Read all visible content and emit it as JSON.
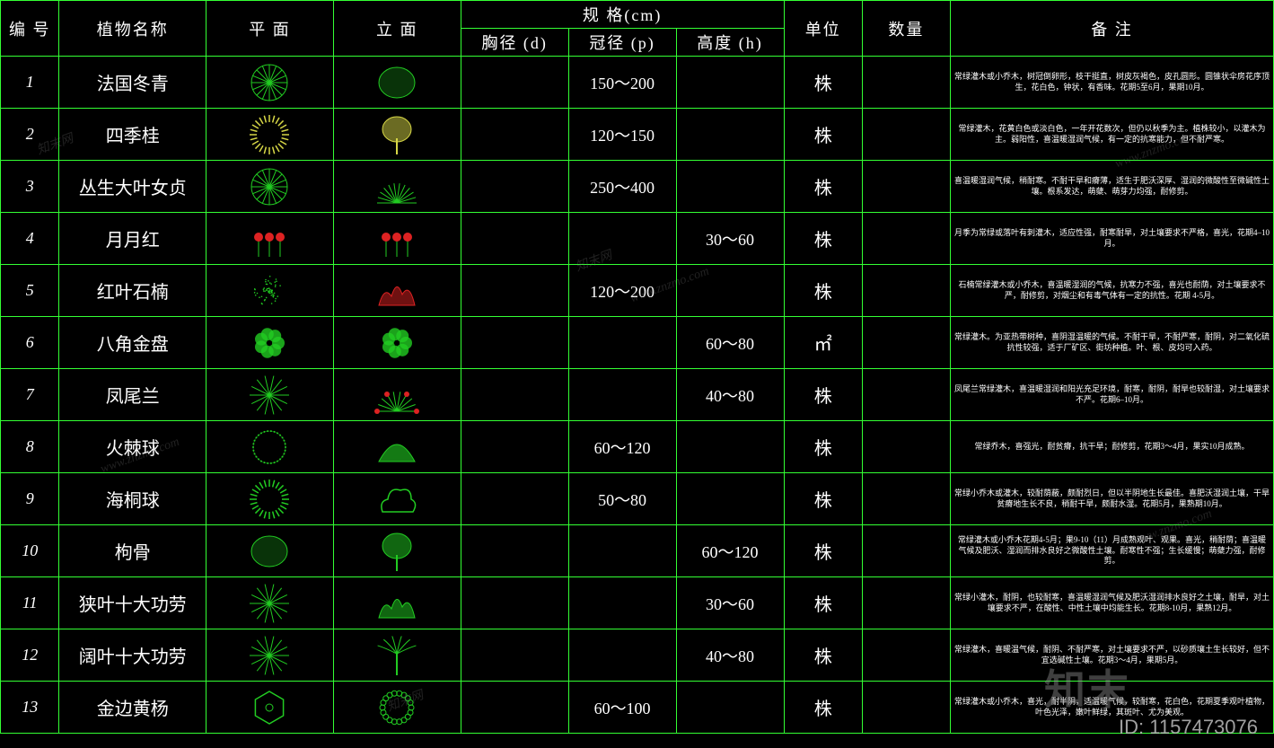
{
  "colors": {
    "background": "#000000",
    "border": "#33ff33",
    "text": "#ffffff",
    "plant_green": "#22cc22",
    "plant_red": "#dd2222",
    "plant_yellow": "#d6d646"
  },
  "watermarks": {
    "url": "www.znzmo.com",
    "brand": "知末网",
    "big_brand": "知末",
    "id_label": "ID: 1157473076"
  },
  "headers": {
    "id": "编 号",
    "name": "植物名称",
    "plan": "平 面",
    "elev": "立 面",
    "spec_group": "规  格(cm)",
    "spec_d": "胸径 (d)",
    "spec_p": "冠径 (p)",
    "spec_h": "高度 (h)",
    "unit": "单位",
    "qty": "数量",
    "note": "备  注"
  },
  "rows": [
    {
      "id": "1",
      "name": "法国冬青",
      "d": "",
      "p": "150～200",
      "h": "",
      "unit": "株",
      "qty": "",
      "note": "常绿灌木或小乔木，树冠倒卵形，枝干挺直，树皮灰褐色，皮孔圆形。圆锥状伞房花序顶生，花白色，钟状，有香味。花期5至6月，果期10月。",
      "plan": "radial-green",
      "elev": "blob-green"
    },
    {
      "id": "2",
      "name": "四季桂",
      "d": "",
      "p": "120～150",
      "h": "",
      "unit": "株",
      "qty": "",
      "note": "常绿灌木，花黄白色或淡白色，一年开花数次，但仍以秋季为主。植株较小，以灌木为主。弱阳性，喜温暖湿润气候，有一定的抗寒能力，但不耐严寒。",
      "plan": "ring-yellow",
      "elev": "tree-yellow"
    },
    {
      "id": "3",
      "name": "丛生大叶女贞",
      "d": "",
      "p": "250～400",
      "h": "",
      "unit": "株",
      "qty": "",
      "note": "喜温暖湿润气候，稍耐寒。不耐干旱和瘠薄，适生于肥沃深厚、湿润的微酸性至微碱性土壤。根系发达，萌蘖、萌芽力均强，耐修剪。",
      "plan": "radial-green",
      "elev": "fan-green"
    },
    {
      "id": "4",
      "name": "月月红",
      "d": "",
      "p": "",
      "h": "30～60",
      "unit": "株",
      "qty": "",
      "note": "月季为常绿或落叶有刺灌木，适应性强，耐寒耐旱，对土壤要求不严格，喜光，花期4–10月。",
      "plan": "flower-red",
      "elev": "flower-red"
    },
    {
      "id": "5",
      "name": "红叶石楠",
      "d": "",
      "p": "120～200",
      "h": "",
      "unit": "株",
      "qty": "",
      "note": "石楠常绿灌木或小乔木，喜温暖湿润的气候，抗寒力不强，喜光也耐荫，对土壤要求不严，耐修剪，对烟尘和有毒气体有一定的抗性。花期 4-5月。",
      "plan": "dots-green",
      "elev": "bush-red"
    },
    {
      "id": "6",
      "name": "八角金盘",
      "d": "",
      "p": "",
      "h": "60～80",
      "unit": "㎡",
      "qty": "",
      "note": "常绿灌木。为亚热带树种，喜阴湿温暖的气候。不耐干旱，不耐严寒，耐阴，对二氧化硫抗性较强，适于厂矿区、街坊种植。叶、根、皮均可入药。",
      "plan": "cluster-green",
      "elev": "cluster-green"
    },
    {
      "id": "7",
      "name": "凤尾兰",
      "d": "",
      "p": "",
      "h": "40～80",
      "unit": "株",
      "qty": "",
      "note": "凤尾兰常绿灌木，喜温暖湿润和阳光充足环境，耐寒，耐阴，耐旱也较耐湿，对土壤要求不严。花期6–10月。",
      "plan": "spiky-green",
      "elev": "spiky-red"
    },
    {
      "id": "8",
      "name": "火棘球",
      "d": "",
      "p": "60～120",
      "h": "",
      "unit": "株",
      "qty": "",
      "note": "常绿乔木，喜强光，耐贫瘠，抗干旱；耐修剪，花期3～4月，果实10月成熟。",
      "plan": "dotring-green",
      "elev": "dome-green"
    },
    {
      "id": "9",
      "name": "海桐球",
      "d": "",
      "p": "50～80",
      "h": "",
      "unit": "株",
      "qty": "",
      "note": "常绿小乔木或灌木，较耐荫蔽，颇耐烈日，但以半阴地生长最佳。喜肥沃湿润土壤，干旱贫瘠地生长不良，稍耐干旱，颇耐水湿。花期5月，果熟期10月。",
      "plan": "ring-green",
      "elev": "cloud-green"
    },
    {
      "id": "10",
      "name": "枸骨",
      "d": "",
      "p": "",
      "h": "60～120",
      "unit": "株",
      "qty": "",
      "note": "常绿灌木或小乔木花期4-5月；果9-10（11）月成熟观叶、观果。喜光，稍耐荫；喜温暖气候及肥沃、湿润而排水良好之微酸性土壤。耐寒性不强；生长缓慢；萌蘖力强，耐修剪。",
      "plan": "blob-green",
      "elev": "tree-green"
    },
    {
      "id": "11",
      "name": "狭叶十大功劳",
      "d": "",
      "p": "",
      "h": "30～60",
      "unit": "株",
      "qty": "",
      "note": "常绿小灌木，耐阴，也较耐寒，喜温暖湿润气候及肥沃湿润排水良好之土壤，耐旱，对土壤要求不严，在酸性、中性土壤中均能生长。花期8-10月，果熟12月。",
      "plan": "spiky-green",
      "elev": "bush-green"
    },
    {
      "id": "12",
      "name": "阔叶十大功劳",
      "d": "",
      "p": "",
      "h": "40～80",
      "unit": "株",
      "qty": "",
      "note": "常绿灌木，喜暖温气候，耐阴、不耐严寒，对土壤要求不严，以砂质壤土生长较好，但不宜选碱性土壤。花期3～4月，果期5月。",
      "plan": "spiky-green",
      "elev": "palm-green"
    },
    {
      "id": "13",
      "name": "金边黄杨",
      "d": "",
      "p": "60～100",
      "h": "",
      "unit": "株",
      "qty": "",
      "note": "常绿灌木或小乔木，喜光，耐半阴，适温暖气候，较耐寒，花白色，花期夏季观叶植物，叶色光泽，嫩叶鲜绿，其斑叶、尤为美观。",
      "plan": "hex-green",
      "elev": "wreath-green"
    }
  ]
}
